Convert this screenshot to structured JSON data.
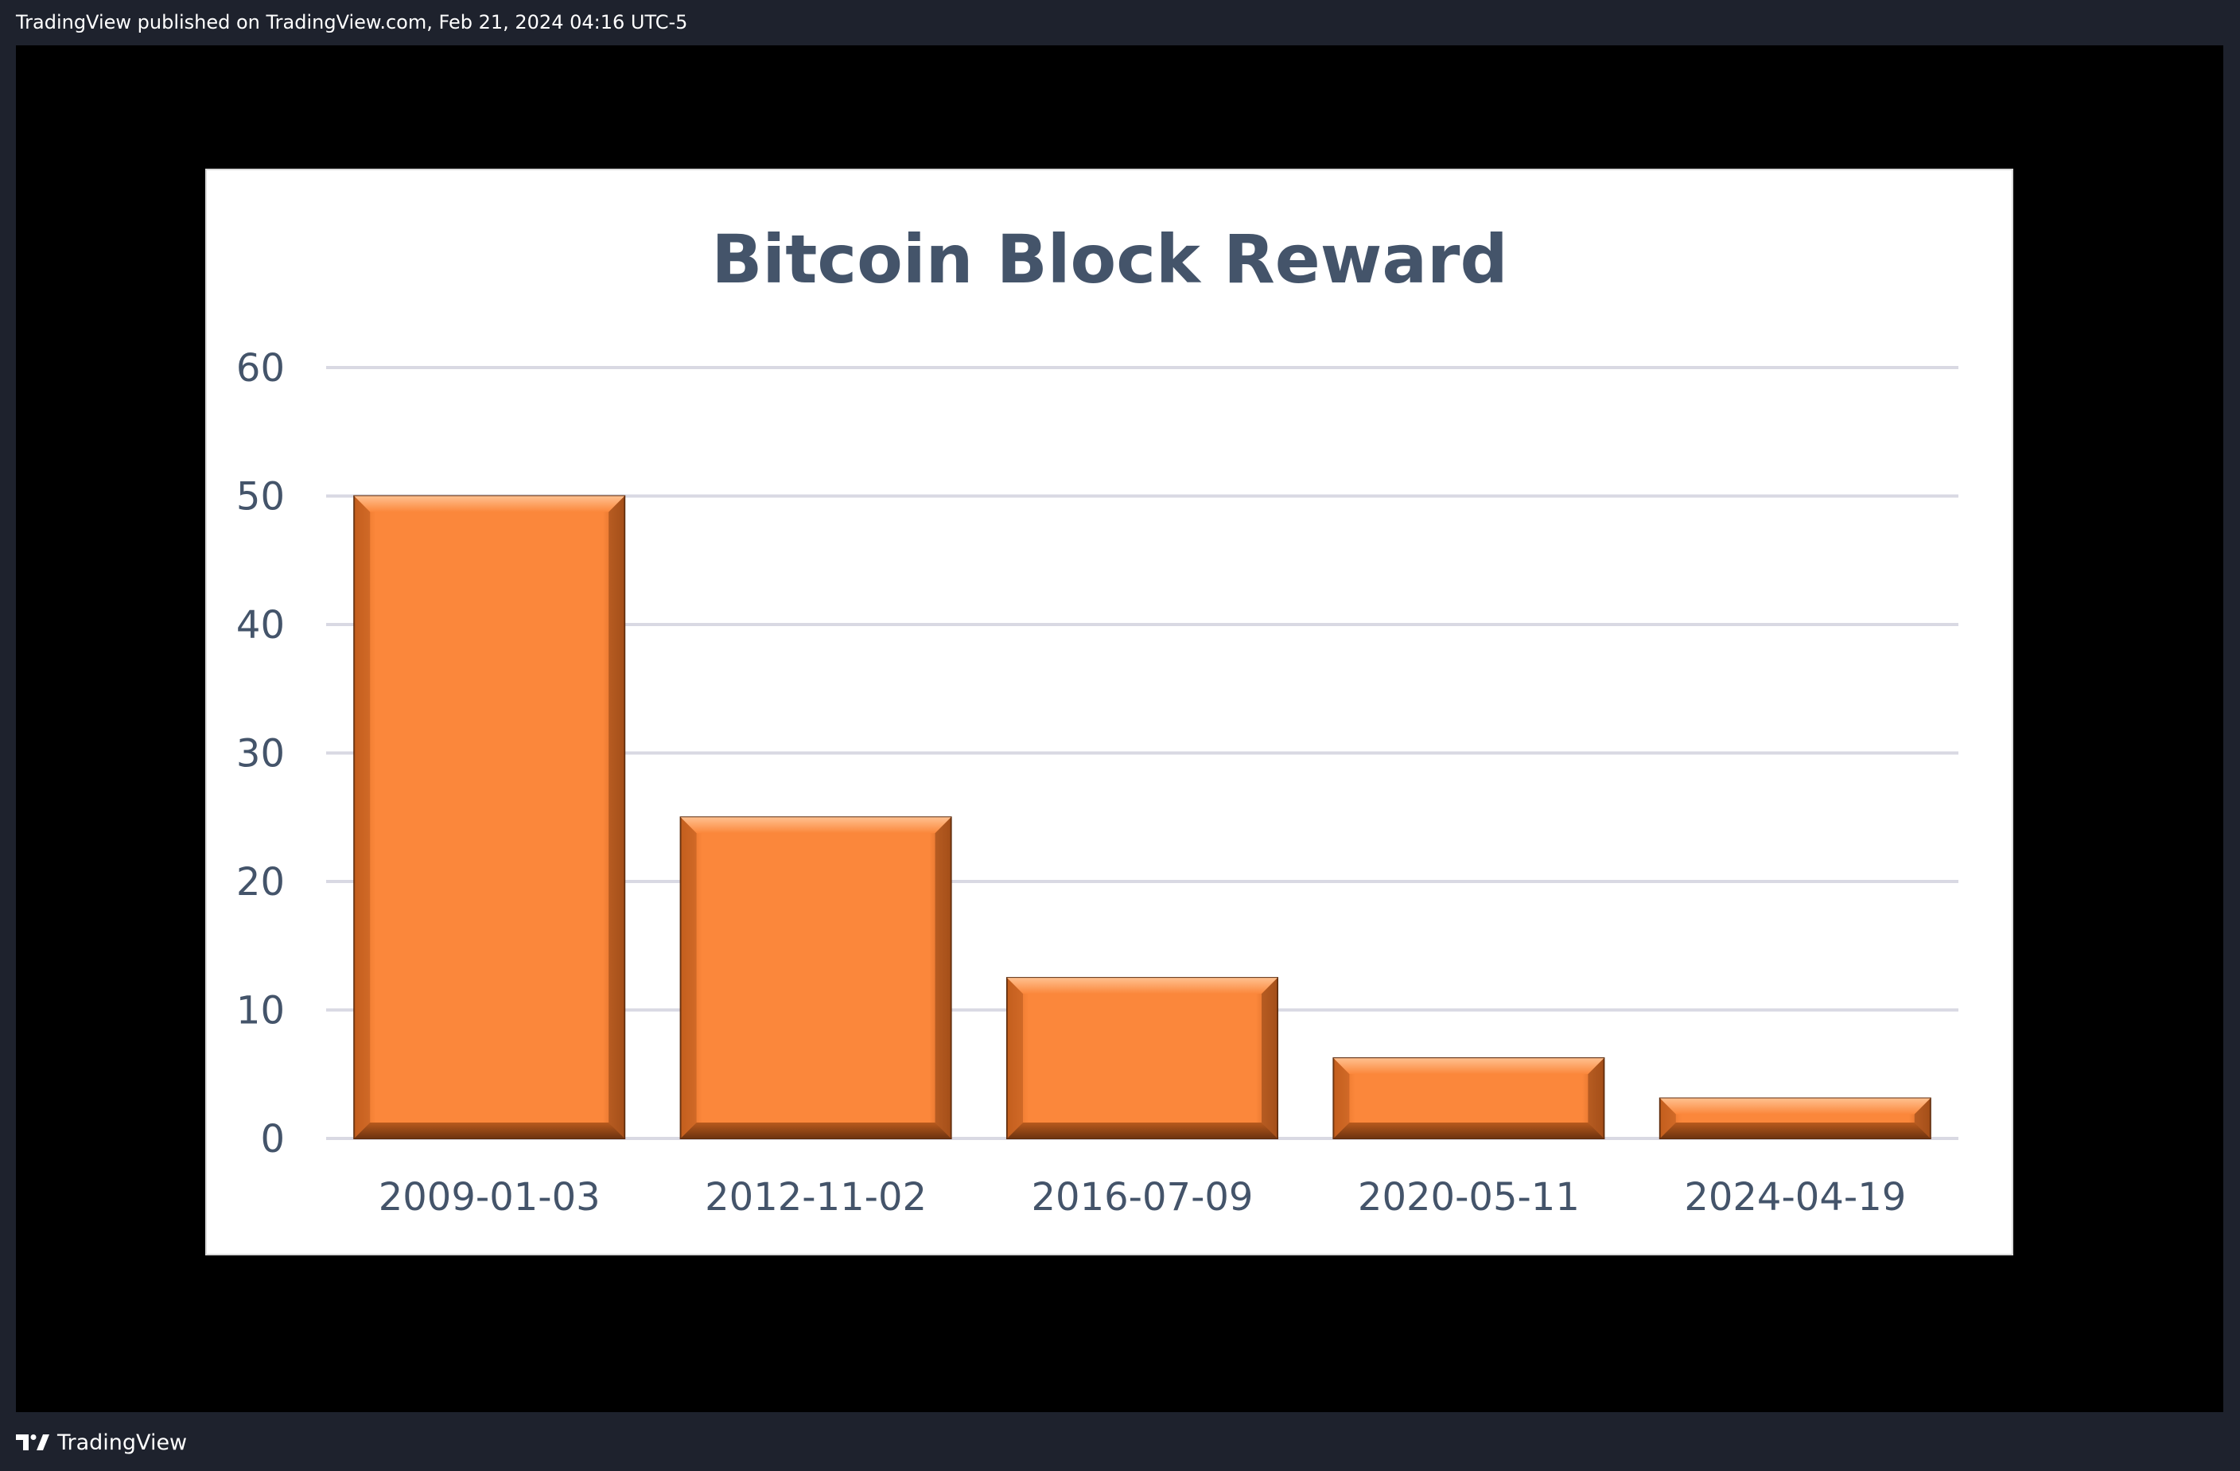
{
  "header": {
    "published_text": "TradingView published on TradingView.com, Feb 21, 2024 04:16 UTC-5"
  },
  "footer": {
    "brand_label": "TradingView",
    "logo_icon": "tradingview-logo-icon"
  },
  "colors": {
    "page_background": "#1e222d",
    "canvas_background": "#000000",
    "panel_background": "#ffffff",
    "bar_fill": "#fb873b",
    "bar_highlight": "#ffb27a",
    "bar_shadow": "#7a3a12",
    "title_color": "#44546a",
    "tick_color": "#44546a",
    "grid_color": "#d9d9e3"
  },
  "chart_data": {
    "type": "bar",
    "title": "Bitcoin Block Reward",
    "xlabel": "",
    "ylabel": "",
    "categories": [
      "2009-01-03",
      "2012-11-02",
      "2016-07-09",
      "2020-05-11",
      "2024-04-19"
    ],
    "values": [
      50,
      25,
      12.5,
      6.25,
      3.125
    ],
    "ylim": [
      0,
      60
    ],
    "yticks": [
      "0",
      "10",
      "20",
      "30",
      "40",
      "50",
      "60"
    ],
    "grid": true,
    "legend": "none"
  }
}
